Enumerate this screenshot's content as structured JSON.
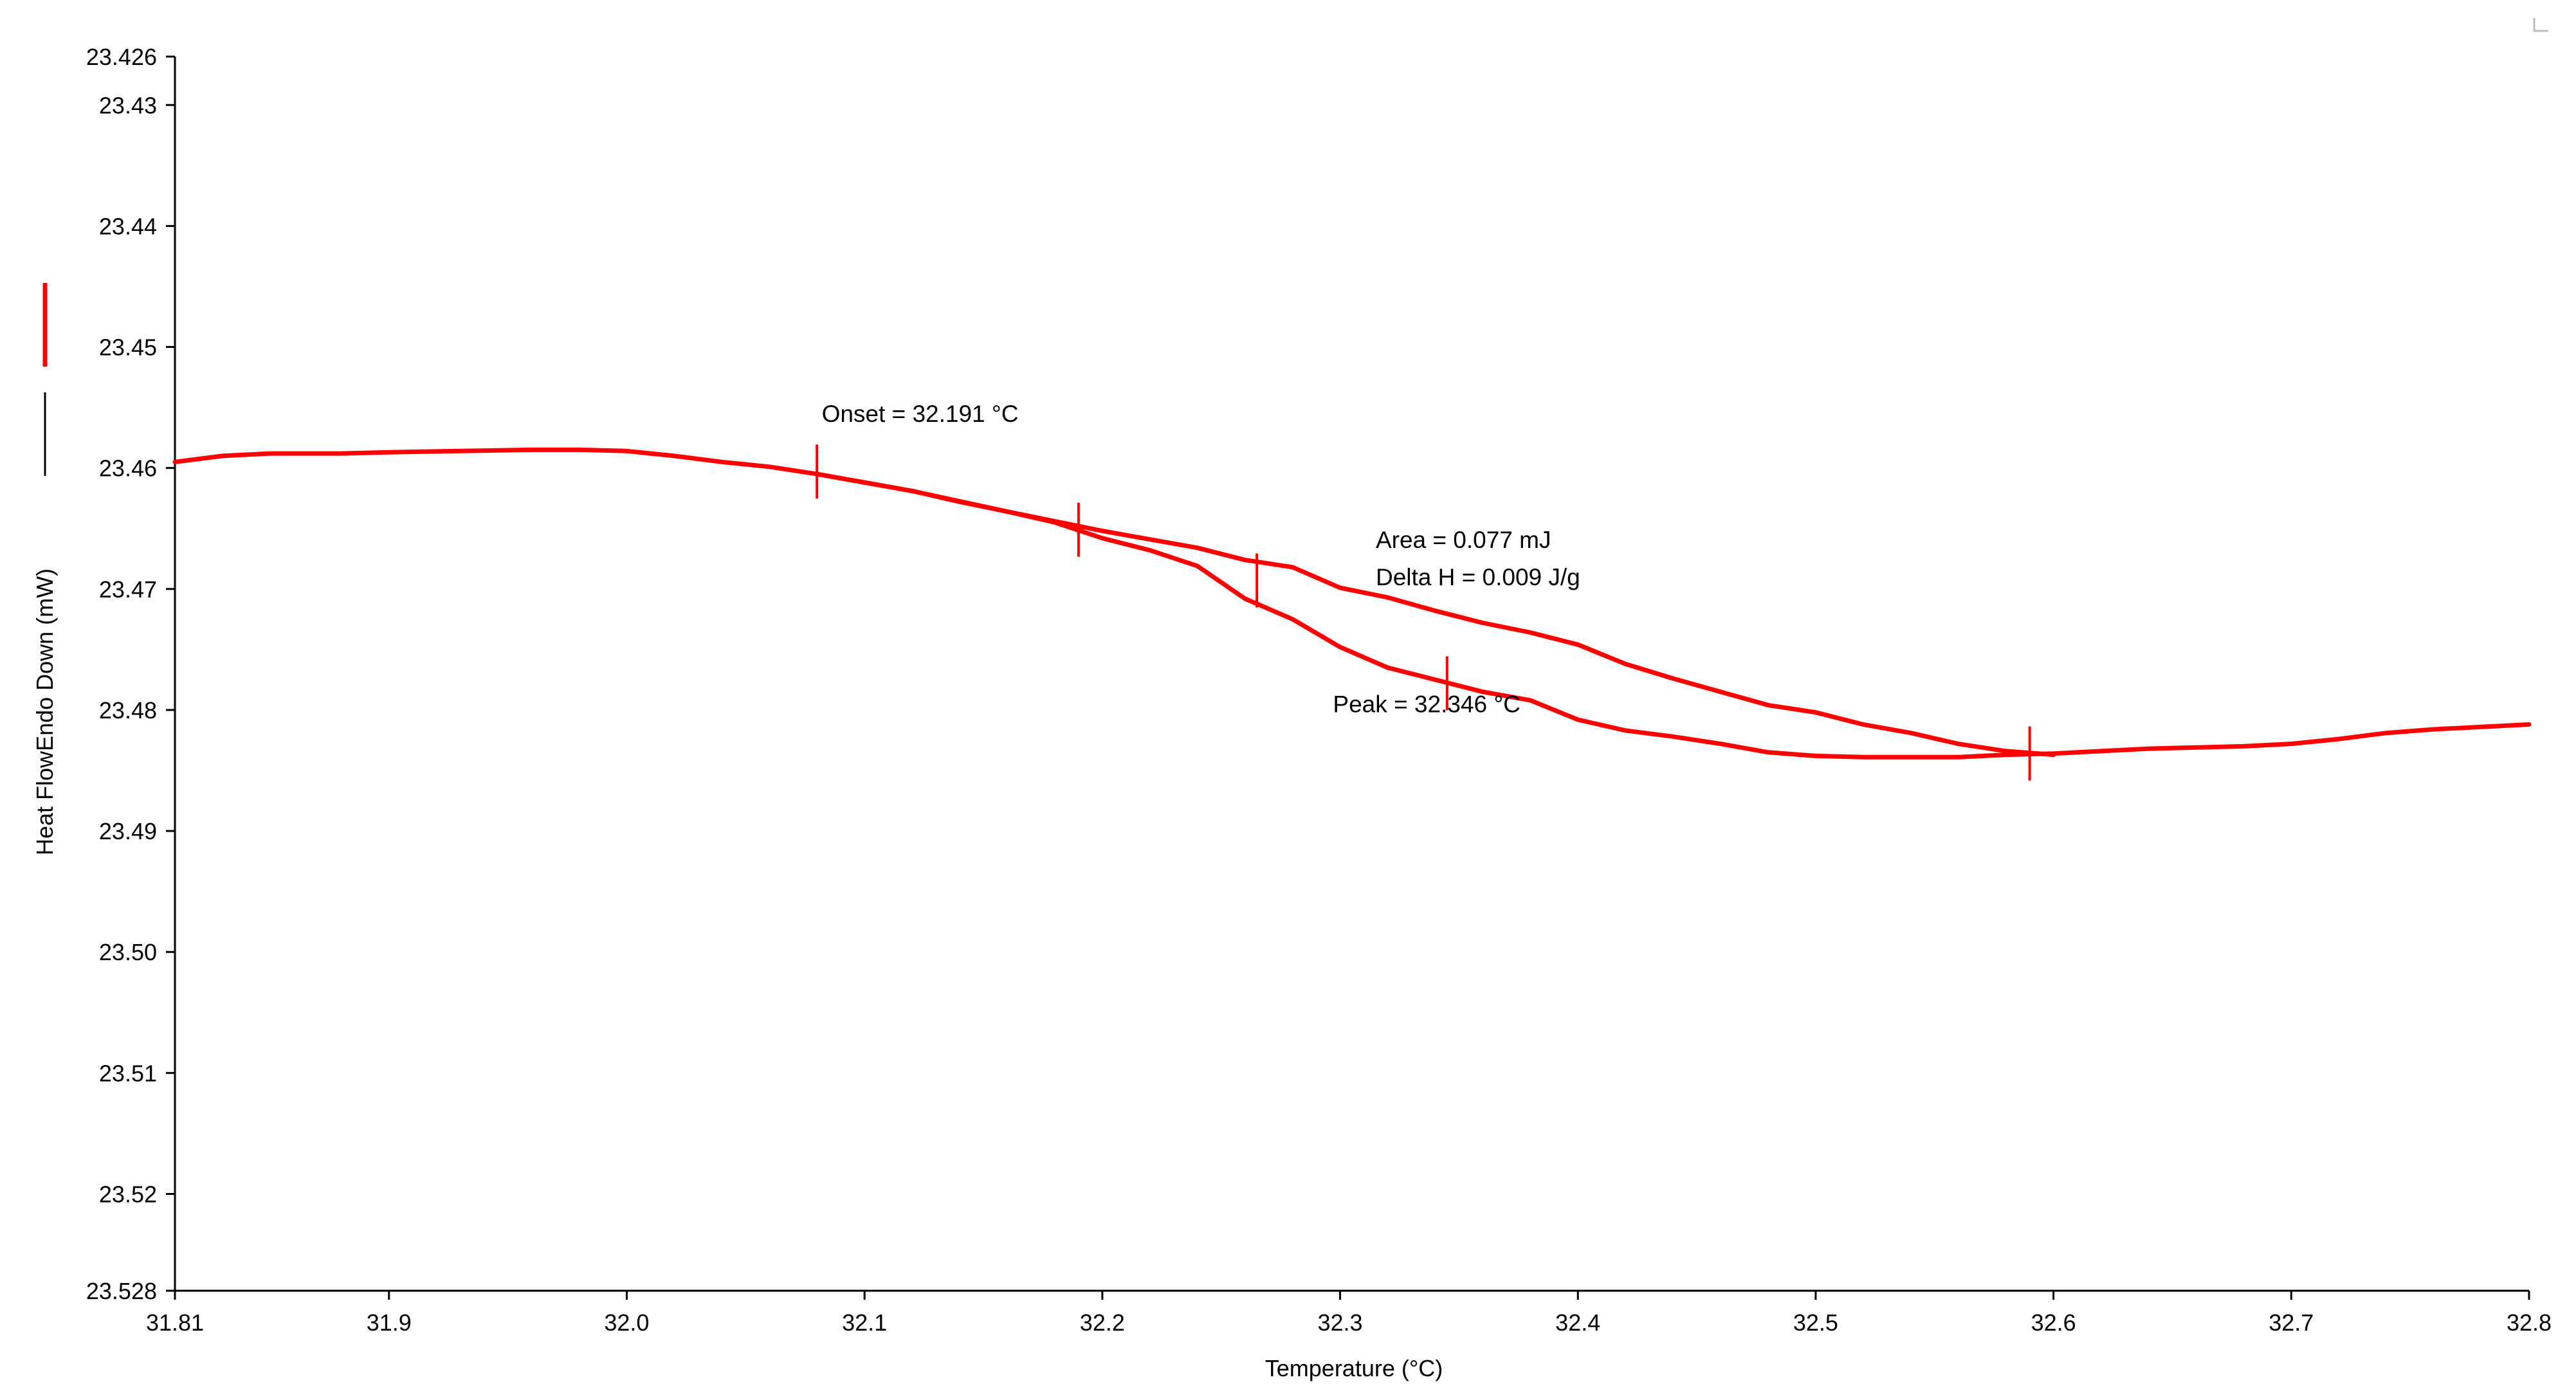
{
  "chart_data": {
    "type": "line",
    "xlabel": "Temperature (°C)",
    "ylabel": "Heat FlowEndo Down (mW)",
    "xlim": [
      31.81,
      32.8
    ],
    "ylim": [
      23.426,
      23.528
    ],
    "y_inverted": true,
    "grid": false,
    "x_ticks": [
      {
        "value": 31.81,
        "label": "31.81"
      },
      {
        "value": 31.9,
        "label": "31.9"
      },
      {
        "value": 32.0,
        "label": "32.0"
      },
      {
        "value": 32.1,
        "label": "32.1"
      },
      {
        "value": 32.2,
        "label": "32.2"
      },
      {
        "value": 32.3,
        "label": "32.3"
      },
      {
        "value": 32.4,
        "label": "32.4"
      },
      {
        "value": 32.5,
        "label": "32.5"
      },
      {
        "value": 32.6,
        "label": "32.6"
      },
      {
        "value": 32.7,
        "label": "32.7"
      },
      {
        "value": 32.8,
        "label": "32.8"
      }
    ],
    "y_ticks": [
      {
        "value": 23.426,
        "label": "23.426"
      },
      {
        "value": 23.43,
        "label": "23.43"
      },
      {
        "value": 23.44,
        "label": "23.44"
      },
      {
        "value": 23.45,
        "label": "23.45"
      },
      {
        "value": 23.46,
        "label": "23.46"
      },
      {
        "value": 23.47,
        "label": "23.47"
      },
      {
        "value": 23.48,
        "label": "23.48"
      },
      {
        "value": 23.49,
        "label": "23.49"
      },
      {
        "value": 23.5,
        "label": "23.50"
      },
      {
        "value": 23.51,
        "label": "23.51"
      },
      {
        "value": 23.52,
        "label": "23.52"
      },
      {
        "value": 23.528,
        "label": "23.528"
      }
    ],
    "series": [
      {
        "color": "#ff0000",
        "x": [
          31.81,
          31.83,
          31.85,
          31.88,
          31.9,
          31.93,
          31.96,
          31.98,
          32.0,
          32.02,
          32.04,
          32.06,
          32.08,
          32.1,
          32.12,
          32.14,
          32.16,
          32.18,
          32.2,
          32.22,
          32.24,
          32.26,
          32.28,
          32.3,
          32.32,
          32.34,
          32.36,
          32.38,
          32.4,
          32.42,
          32.44,
          32.46,
          32.48,
          32.5,
          32.52,
          32.54,
          32.56,
          32.58,
          32.6,
          32.62,
          32.64,
          32.66,
          32.68,
          32.7,
          32.72,
          32.74,
          32.76,
          32.78,
          32.8
        ],
        "y": [
          23.4595,
          23.459,
          23.4588,
          23.4588,
          23.4587,
          23.4586,
          23.4585,
          23.4585,
          23.4586,
          23.459,
          23.4595,
          23.4599,
          23.4605,
          23.4612,
          23.4619,
          23.4628,
          23.4636,
          23.4645,
          23.4658,
          23.4668,
          23.4681,
          23.4708,
          23.4725,
          23.4748,
          23.4765,
          23.4775,
          23.4785,
          23.4792,
          23.4808,
          23.4817,
          23.4822,
          23.4828,
          23.4835,
          23.4838,
          23.4839,
          23.4839,
          23.4839,
          23.4837,
          23.4836,
          23.4834,
          23.4832,
          23.4831,
          23.483,
          23.4828,
          23.4824,
          23.4819,
          23.4816,
          23.4814,
          23.4812
        ]
      },
      {
        "color": "#ff0000",
        "x": [
          32.08,
          32.12,
          32.16,
          32.2,
          32.22,
          32.24,
          32.26,
          32.28,
          32.3,
          32.32,
          32.34,
          32.36,
          32.38,
          32.4,
          32.42,
          32.44,
          32.46,
          32.48,
          32.5,
          32.52,
          32.54,
          32.56,
          32.58,
          32.6
        ],
        "y": [
          23.4605,
          23.4619,
          23.4636,
          23.4652,
          23.4659,
          23.4666,
          23.4676,
          23.4682,
          23.4699,
          23.4707,
          23.4718,
          23.4728,
          23.4736,
          23.4746,
          23.4762,
          23.4774,
          23.4785,
          23.4796,
          23.4802,
          23.4812,
          23.4819,
          23.4828,
          23.4834,
          23.4837
        ]
      }
    ],
    "markers": [
      {
        "x": 32.08,
        "y": 23.4603
      },
      {
        "x": 32.19,
        "y": 23.4651
      },
      {
        "x": 32.265,
        "y": 23.4693
      },
      {
        "x": 32.345,
        "y": 23.4778
      },
      {
        "x": 32.59,
        "y": 23.4836
      }
    ],
    "annotations": [
      {
        "text": "Onset = 32.191 °C",
        "x": 32.082,
        "y": 23.4562
      },
      {
        "text": "Area = 0.077 mJ",
        "x": 32.315,
        "y": 23.4666
      },
      {
        "text": "Delta H = 0.009 J/g",
        "x": 32.315,
        "y": 23.4697
      },
      {
        "text": "Peak = 32.346 °C",
        "x": 32.297,
        "y": 23.4802
      }
    ],
    "legend": {
      "placement": "left",
      "entries": [
        {
          "color": "#ff0000"
        },
        {
          "color": "#000000"
        }
      ]
    }
  }
}
